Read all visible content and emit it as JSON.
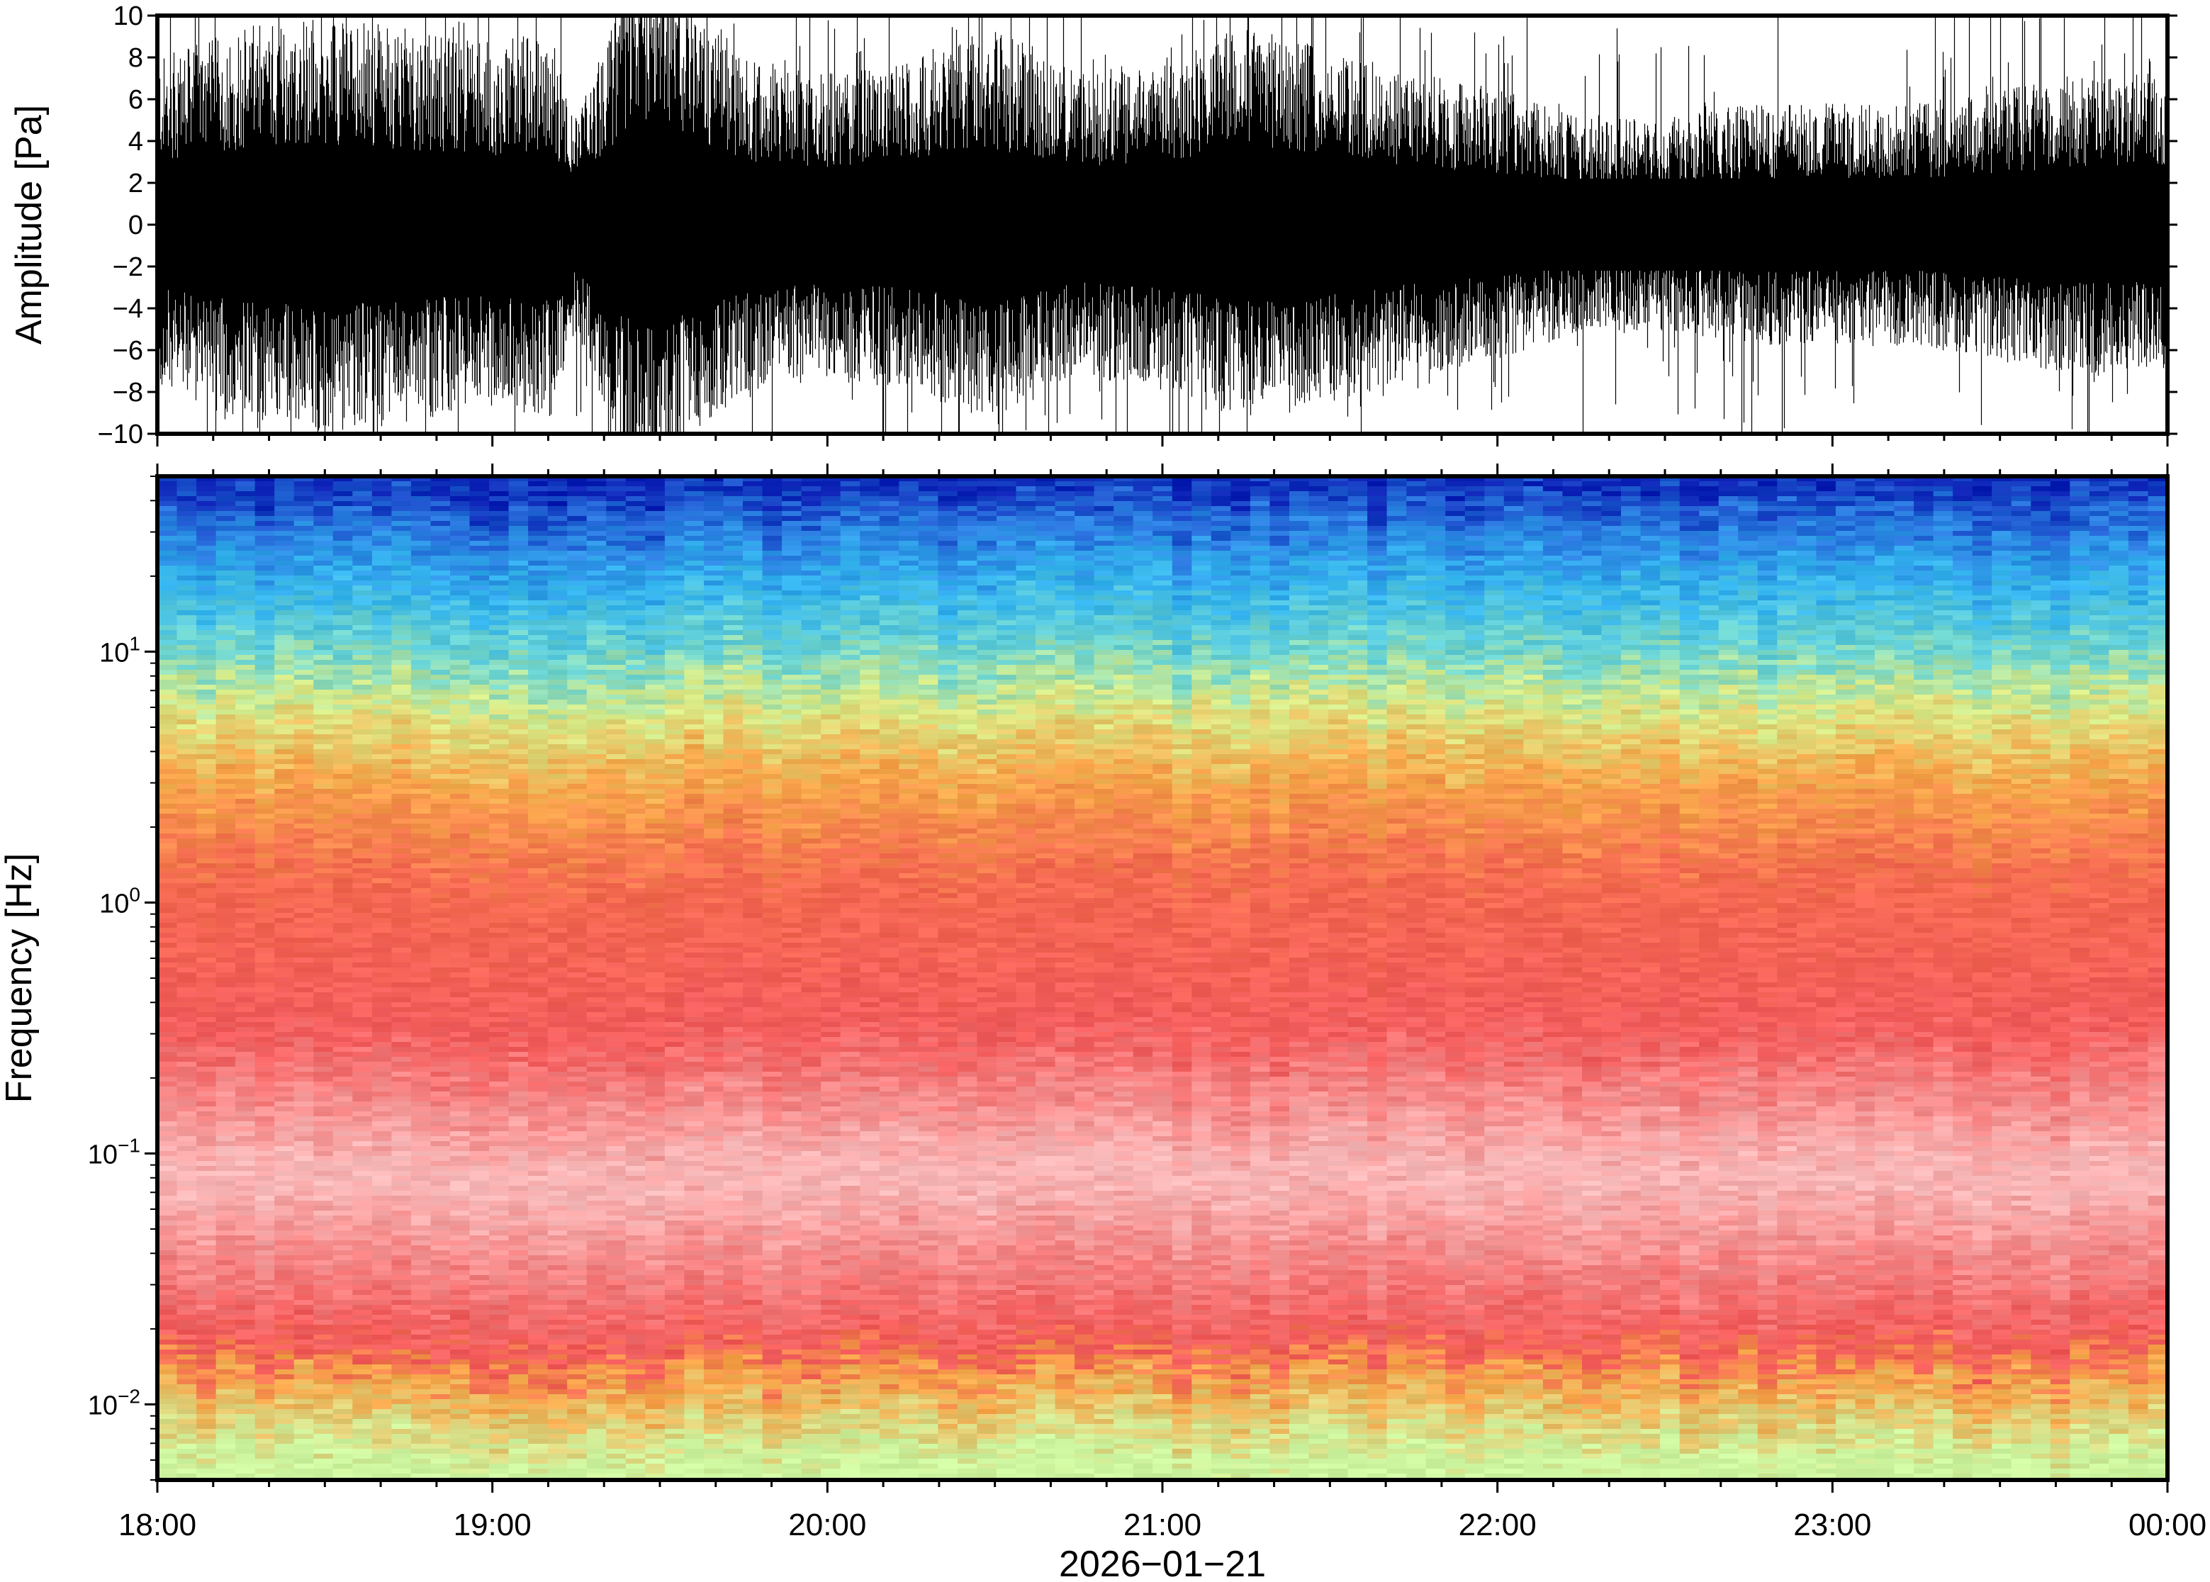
{
  "chart_data": [
    {
      "type": "line",
      "panel": "waveform",
      "ylabel": "Amplitude [Pa]",
      "ylim": [
        -10,
        10
      ],
      "yticks": [
        10,
        8,
        6,
        4,
        2,
        0,
        -2,
        -4,
        -6,
        -8,
        -10
      ],
      "ytick_labels": [
        "10",
        "8",
        "6",
        "4",
        "2",
        "0",
        "−2",
        "−4",
        "−6",
        "−8",
        "−10"
      ],
      "xlim": [
        "18:00",
        "00:00"
      ],
      "series": [
        {
          "color": "#000000",
          "envelope_x_hours": [
            0.0,
            0.25,
            0.5,
            0.75,
            1.0,
            1.17,
            1.25,
            1.4,
            1.5,
            1.6,
            1.75,
            2.0,
            2.25,
            2.5,
            2.75,
            3.0,
            3.25,
            3.5,
            3.75,
            4.0,
            4.25,
            4.5,
            4.75,
            5.0,
            5.25,
            5.5,
            5.75,
            6.0
          ],
          "envelope_amplitude": [
            5.5,
            6.5,
            7.0,
            6.5,
            6.0,
            6.5,
            3.5,
            8.0,
            9.5,
            7.0,
            5.5,
            5.0,
            5.5,
            6.5,
            5.0,
            5.5,
            6.5,
            6.0,
            5.0,
            4.5,
            3.5,
            3.5,
            4.0,
            4.0,
            4.0,
            4.5,
            5.0,
            5.0
          ]
        }
      ]
    },
    {
      "type": "heatmap",
      "panel": "spectrogram",
      "ylabel": "Frequency [Hz]",
      "yscale": "log",
      "ylim": [
        0.005,
        50
      ],
      "yticks": [
        0.01,
        0.1,
        1,
        10
      ],
      "ytick_labels": [
        {
          "base": "10",
          "exp": "−2"
        },
        {
          "base": "10",
          "exp": "−1"
        },
        {
          "base": "10",
          "exp": "0"
        },
        {
          "base": "10",
          "exp": "1"
        }
      ],
      "xlim": [
        "18:00",
        "00:00"
      ],
      "xticks": [
        "18:00",
        "19:00",
        "20:00",
        "21:00",
        "22:00",
        "23:00",
        "00:00"
      ],
      "xlabel": "2026−01−21",
      "colormap": [
        "#0a1fb4",
        "#2a7be0",
        "#33b4ee",
        "#6fd6d0",
        "#b8f09c",
        "#f5e070",
        "#f6a040",
        "#f26a4e",
        "#f55a5a",
        "#f8a8a8",
        "#fbd3d3"
      ],
      "color_stops_by_frequency_hz": [
        {
          "f": 50,
          "color": "#0a1fb4"
        },
        {
          "f": 30,
          "color": "#2a7be0"
        },
        {
          "f": 18,
          "color": "#33b4ee"
        },
        {
          "f": 10,
          "color": "#6fd6d0"
        },
        {
          "f": 6,
          "color": "#d8ec88"
        },
        {
          "f": 3,
          "color": "#f7a64a"
        },
        {
          "f": 1.2,
          "color": "#f46a50"
        },
        {
          "f": 0.3,
          "color": "#f35c5c"
        },
        {
          "f": 0.08,
          "color": "#f9bcbc"
        },
        {
          "f": 0.03,
          "color": "#f47a7a"
        },
        {
          "f": 0.017,
          "color": "#f25858"
        },
        {
          "f": 0.012,
          "color": "#f7a448"
        },
        {
          "f": 0.006,
          "color": "#cdf5a0"
        }
      ]
    }
  ]
}
